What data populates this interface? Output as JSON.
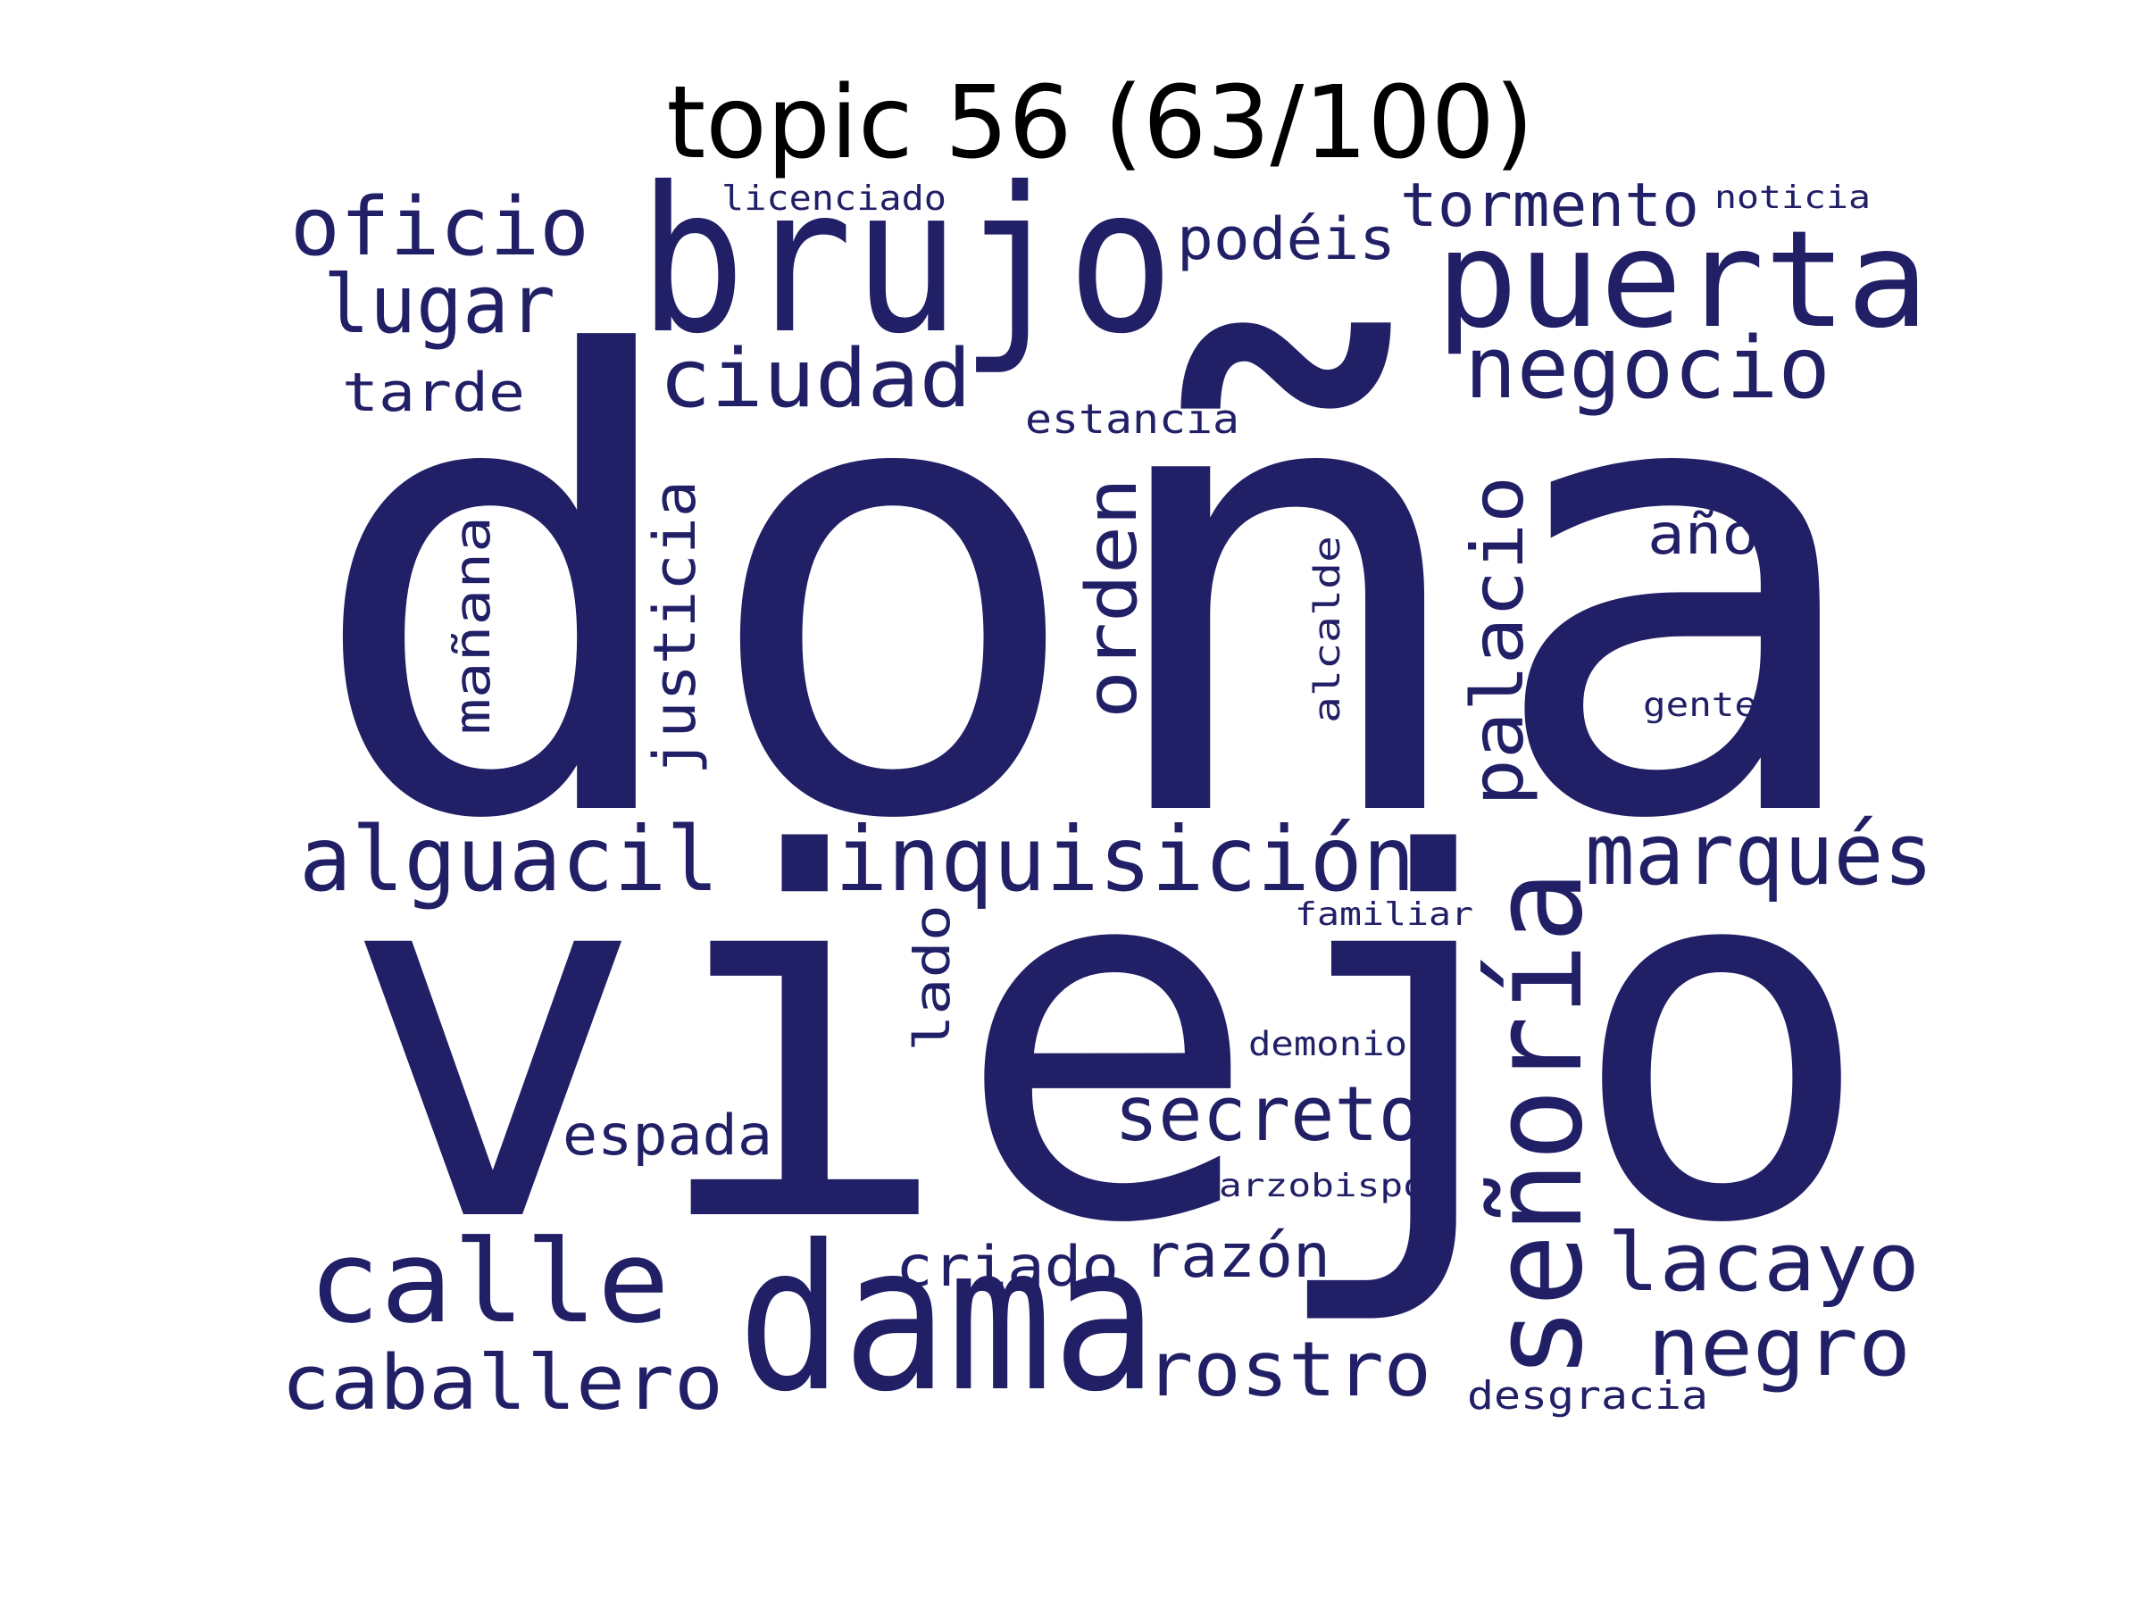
{
  "title": "topic 56 (63/100)",
  "word_color": "#211f66",
  "title_color": "#000000",
  "words": {
    "dona": "doña",
    "viejo": "viejo",
    "brujo": "brujo",
    "puerta": "puerta",
    "dama": "dama",
    "senoria": "señoría",
    "calle": "calle",
    "inquisicion": "inquisición",
    "alguacil": "alguacil",
    "marques": "marqués",
    "oficio": "oficio",
    "negocio": "negocio",
    "ciudad": "ciudad",
    "lugar": "lugar",
    "palacio": "palacio",
    "orden": "orden",
    "justicia": "justicia",
    "secreto": "secreto",
    "lacayo": "lacayo",
    "negro": "negro",
    "caballero": "caballero",
    "rostro": "rostro",
    "tormento": "tormento",
    "podeis": "podéis",
    "razon": "razón",
    "criado": "criado",
    "tarde": "tarde",
    "espada": "espada",
    "mañana": "mañana",
    "ano": "año",
    "lado": "lado",
    "estancia": "estancia",
    "alcalde": "alcalde",
    "licenciado": "licenciado",
    "noticia": "noticia",
    "gente": "gente",
    "familiar": "familiar",
    "demonio": "demonio",
    "arzobispo": "arzobispo",
    "desgracia": "desgracia"
  }
}
